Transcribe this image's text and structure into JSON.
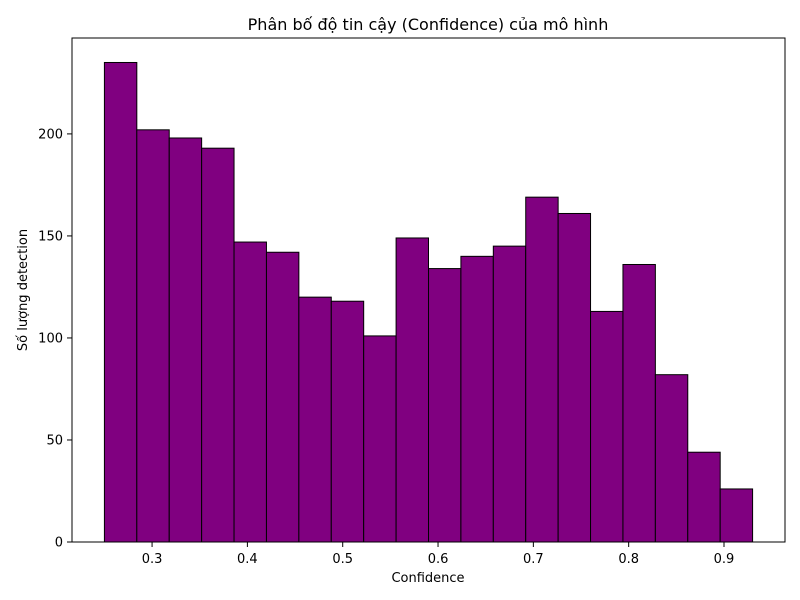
{
  "chart_data": {
    "type": "bar",
    "title": "Phân bố độ tin cậy (Confidence) của mô hình",
    "xlabel": "Confidence",
    "ylabel": "Số lượng detection",
    "bin_edges": [
      0.25,
      0.284,
      0.318,
      0.352,
      0.386,
      0.42,
      0.454,
      0.488,
      0.522,
      0.556,
      0.59,
      0.624,
      0.658,
      0.692,
      0.726,
      0.76,
      0.794,
      0.828,
      0.862,
      0.896,
      0.93
    ],
    "values": [
      235,
      202,
      198,
      193,
      147,
      142,
      120,
      118,
      101,
      149,
      134,
      140,
      145,
      169,
      161,
      113,
      136,
      82,
      44,
      26
    ],
    "xlim": [
      0.216,
      0.964
    ],
    "ylim": [
      0,
      247
    ],
    "x_ticks": [
      0.3,
      0.4,
      0.5,
      0.6,
      0.7,
      0.8,
      0.9
    ],
    "x_tick_labels": [
      "0.3",
      "0.4",
      "0.5",
      "0.6",
      "0.7",
      "0.8",
      "0.9"
    ],
    "y_ticks": [
      0,
      50,
      100,
      150,
      200
    ],
    "y_tick_labels": [
      "0",
      "50",
      "100",
      "150",
      "200"
    ],
    "bar_color": "#800080",
    "edge_color": "#000000",
    "grid": false,
    "legend": "none"
  }
}
